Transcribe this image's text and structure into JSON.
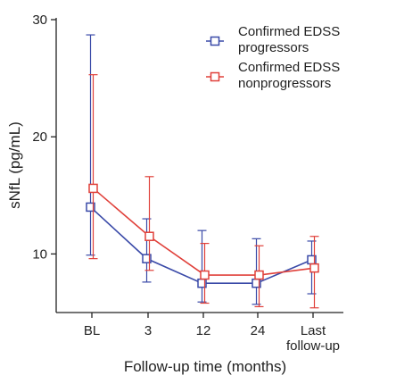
{
  "chart_data": {
    "type": "line",
    "title": "",
    "xlabel": "Follow-up time (months)",
    "ylabel": "sNfL (pg/mL)",
    "categories": [
      [
        "BL"
      ],
      [
        "3"
      ],
      [
        "12"
      ],
      [
        "24"
      ],
      [
        "Last",
        "follow-up"
      ]
    ],
    "ylim": [
      5,
      30
    ],
    "yticks": [
      10,
      20,
      30
    ],
    "grid": false,
    "legend_position": "top-right",
    "series": [
      {
        "name_lines": [
          "Confirmed EDSS",
          "progressors"
        ],
        "color": "#3a4aa8",
        "values": [
          14.0,
          9.6,
          7.5,
          7.5,
          9.5
        ],
        "err_low": [
          9.9,
          7.6,
          5.9,
          5.7,
          6.6
        ],
        "err_high": [
          28.7,
          13.0,
          12.0,
          11.3,
          11.1
        ]
      },
      {
        "name_lines": [
          "Confirmed EDSS",
          "nonprogressors"
        ],
        "color": "#e0403a",
        "values": [
          15.6,
          11.5,
          8.2,
          8.2,
          8.8
        ],
        "err_low": [
          9.6,
          8.6,
          5.8,
          5.5,
          5.4
        ],
        "err_high": [
          25.3,
          16.6,
          10.9,
          10.7,
          11.5
        ]
      }
    ]
  }
}
